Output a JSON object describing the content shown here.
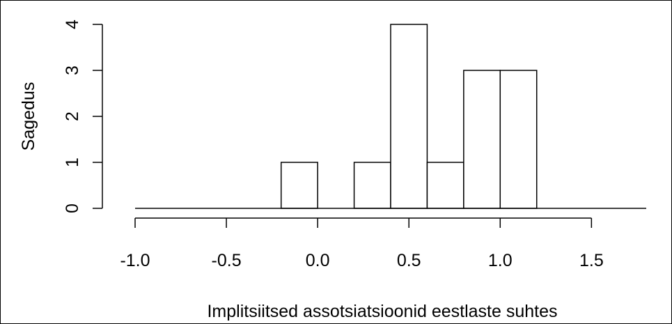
{
  "chart_data": {
    "type": "bar",
    "subtype": "histogram",
    "xlabel": "Implitsiitsed assotsiatsioonid eestlaste suhtes",
    "ylabel": "Sagedus",
    "bins": [
      {
        "x0": -1.0,
        "x1": -0.8,
        "count": 0
      },
      {
        "x0": -0.8,
        "x1": -0.6,
        "count": 0
      },
      {
        "x0": -0.6,
        "x1": -0.4,
        "count": 0
      },
      {
        "x0": -0.4,
        "x1": -0.2,
        "count": 0
      },
      {
        "x0": -0.2,
        "x1": 0.0,
        "count": 1
      },
      {
        "x0": 0.0,
        "x1": 0.2,
        "count": 0
      },
      {
        "x0": 0.2,
        "x1": 0.4,
        "count": 1
      },
      {
        "x0": 0.4,
        "x1": 0.6,
        "count": 4
      },
      {
        "x0": 0.6,
        "x1": 0.8,
        "count": 1
      },
      {
        "x0": 0.8,
        "x1": 1.0,
        "count": 3
      },
      {
        "x0": 1.0,
        "x1": 1.2,
        "count": 3
      },
      {
        "x0": 1.2,
        "x1": 1.4,
        "count": 0
      },
      {
        "x0": 1.4,
        "x1": 1.6,
        "count": 0
      },
      {
        "x0": 1.6,
        "x1": 1.8,
        "count": 0
      }
    ],
    "x_ticks": [
      {
        "value": -1.0,
        "label": "-1.0"
      },
      {
        "value": -0.5,
        "label": "-0.5"
      },
      {
        "value": 0.0,
        "label": "0.0"
      },
      {
        "value": 0.5,
        "label": "0.5"
      },
      {
        "value": 1.0,
        "label": "1.0"
      },
      {
        "value": 1.5,
        "label": "1.5"
      }
    ],
    "y_ticks": [
      {
        "value": 0,
        "label": "0"
      },
      {
        "value": 1,
        "label": "1"
      },
      {
        "value": 2,
        "label": "2"
      },
      {
        "value": 3,
        "label": "3"
      },
      {
        "value": 4,
        "label": "4"
      }
    ],
    "xlim": [
      -1.0,
      1.8
    ],
    "ylim": [
      0,
      4
    ],
    "grid": false,
    "legend": "none",
    "bar_fill": "#ffffff",
    "bar_stroke": "#000000"
  }
}
